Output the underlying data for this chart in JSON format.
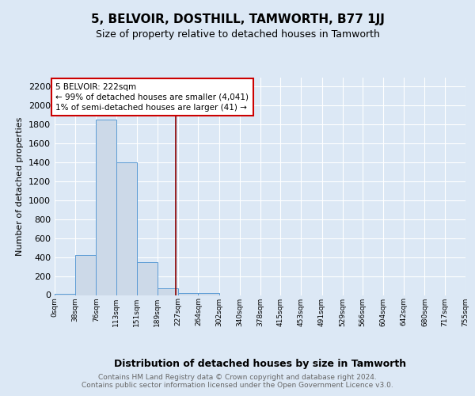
{
  "title": "5, BELVOIR, DOSTHILL, TAMWORTH, B77 1JJ",
  "subtitle": "Size of property relative to detached houses in Tamworth",
  "xlabel": "Distribution of detached houses by size in Tamworth",
  "ylabel": "Number of detached properties",
  "bar_edges": [
    0,
    38,
    76,
    113,
    151,
    189,
    227,
    264,
    302,
    340,
    378,
    415,
    453,
    491,
    529,
    566,
    604,
    642,
    680,
    717,
    755
  ],
  "bar_heights": [
    10,
    420,
    1850,
    1400,
    350,
    75,
    20,
    20,
    0,
    0,
    0,
    0,
    0,
    0,
    0,
    0,
    0,
    0,
    0,
    0
  ],
  "bar_color": "#ccd9e8",
  "bar_edge_color": "#5b9bd5",
  "vline_x": 222,
  "vline_color": "#8b0000",
  "annotation_text": "5 BELVOIR: 222sqm\n← 99% of detached houses are smaller (4,041)\n1% of semi-detached houses are larger (41) →",
  "annotation_box_color": "#ffffff",
  "annotation_box_edgecolor": "#cc0000",
  "ylim": [
    0,
    2300
  ],
  "yticks": [
    0,
    200,
    400,
    600,
    800,
    1000,
    1200,
    1400,
    1600,
    1800,
    2000,
    2200
  ],
  "footer_text": "Contains HM Land Registry data © Crown copyright and database right 2024.\nContains public sector information licensed under the Open Government Licence v3.0.",
  "tick_labels": [
    "0sqm",
    "38sqm",
    "76sqm",
    "113sqm",
    "151sqm",
    "189sqm",
    "227sqm",
    "264sqm",
    "302sqm",
    "340sqm",
    "378sqm",
    "415sqm",
    "453sqm",
    "491sqm",
    "529sqm",
    "566sqm",
    "604sqm",
    "642sqm",
    "680sqm",
    "717sqm",
    "755sqm"
  ],
  "background_color": "#dce8f5",
  "plot_bg_color": "#dce8f5",
  "grid_color": "#ffffff",
  "title_fontsize": 11,
  "subtitle_fontsize": 9,
  "ylabel_fontsize": 8,
  "xlabel_fontsize": 9,
  "ytick_fontsize": 8,
  "xtick_fontsize": 6.5,
  "annotation_fontsize": 7.5,
  "footer_fontsize": 6.5,
  "footer_color": "#666666"
}
